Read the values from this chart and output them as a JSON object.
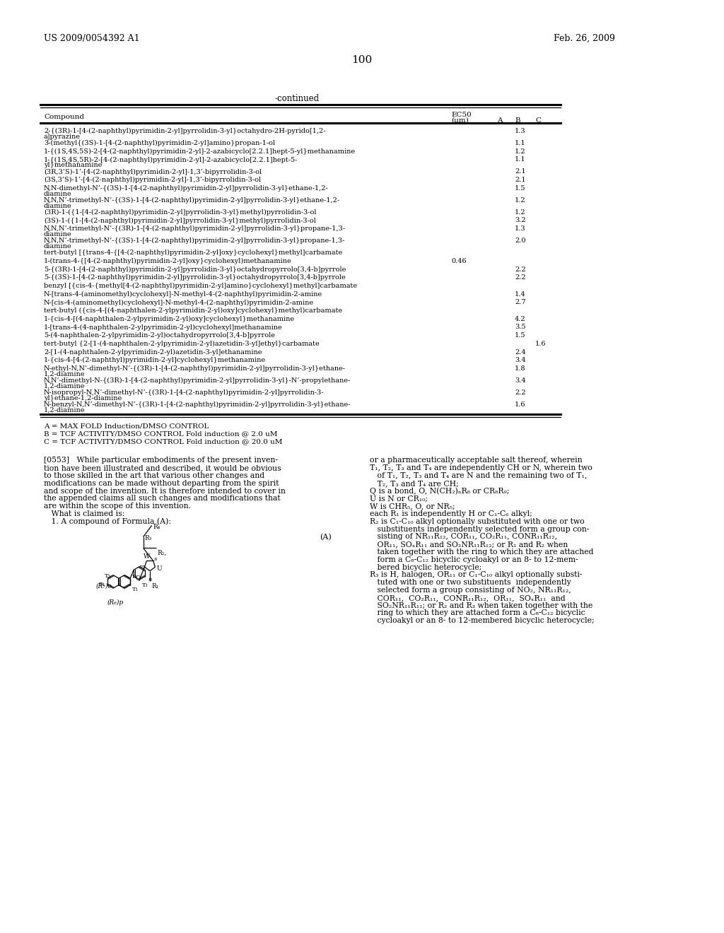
{
  "page_number": "100",
  "header_left": "US 2009/0054392 A1",
  "header_right": "Feb. 26, 2009",
  "table_title": "-continued",
  "table_rows": [
    [
      "2-{(3R)-1-[4-(2-naphthyl)pyrimidin-2-yl]pyrrolidin-3-yl}octahydro-2H-pyrido[1,2-",
      "a]pyrazine",
      "",
      "",
      "1.3",
      ""
    ],
    [
      "3-(methyl{(3S)-1-[4-(2-naphthyl)pyrimidin-2-yl]amino}propan-1-ol",
      "",
      "",
      "",
      "1.1",
      ""
    ],
    [
      "1-{(1S,4S,5S)-2-[4-(2-naphthyl)pyrimidin-2-yl]-2-azabicyclo[2.2.1]hept-5-yl}methanamine",
      "",
      "",
      "",
      "1.2",
      ""
    ],
    [
      "1-{(1S,4S,5R)-2-[4-(2-naphthyl)pyrimidin-2-yl]-2-azabicyclo[2.2.1]hept-5-",
      "yl}methanamine",
      "",
      "",
      "1.1",
      ""
    ],
    [
      "(3R,3’S)-1’-[4-(2-naphthyl)pyrimidin-2-yl]-1,3’-bipyrrolidin-3-ol",
      "",
      "",
      "",
      "2.1",
      ""
    ],
    [
      "(3S,3’S)-1’-[4-(2-naphthyl)pyrimidin-2-yl]-1,3’-bipyrrolidin-3-ol",
      "",
      "",
      "",
      "2.1",
      ""
    ],
    [
      "N,N-dimethyl-N’-{(3S)-1-[4-(2-naphthyl)pyrimidin-2-yl]pyrrolidin-3-yl}ethane-1,2-",
      "diamine",
      "",
      "",
      "1.5",
      ""
    ],
    [
      "N,N,N’-trimethyl-N’-{(3S)-1-[4-(2-naphthyl)pyrimidin-2-yl]pyrrolidin-3-yl}ethane-1,2-",
      "diamine",
      "",
      "",
      "1.2",
      ""
    ],
    [
      "(3R)-1-({1-[4-(2-naphthyl)pyrimidin-2-yl]pyrrolidin-3-yl}methyl)pyrrolidin-3-ol",
      "",
      "",
      "",
      "1.2",
      ""
    ],
    [
      "(3S)-1-({1-[4-(2-naphthyl)pyrimidin-2-yl]pyrrolidin-3-yl}methyl)pyrrolidin-3-ol",
      "",
      "",
      "",
      "3.2",
      ""
    ],
    [
      "N,N,N’-trimethyl-N’-{(3R)-1-[4-(2-naphthyl)pyrimidin-2-yl]pyrrolidin-3-yl}propane-1,3-",
      "diamine",
      "",
      "",
      "1.3",
      ""
    ],
    [
      "N,N,N’-trimethyl-N’-{(3S)-1-[4-(2-naphthyl)pyrimidin-2-yl]pyrrolidin-3-yl}propane-1,3-",
      "diamine",
      "",
      "",
      "2.0",
      ""
    ],
    [
      "tert-butyl [{trans-4-{[4-(2-naphthyl)pyrimidin-2-yl]oxy}cyclohexyl}methyl]carbamate",
      "",
      "",
      "",
      "",
      ""
    ],
    [
      "1-(trans-4-{[4-(2-naphthyl)pyrimidin-2-yl]oxy}cyclohexyl)methanamine",
      "",
      "0.46",
      "",
      "",
      ""
    ],
    [
      "5-{(3R)-1-[4-(2-naphthyl)pyrimidin-2-yl]pyrrolidin-3-yl}octahydropyrrolo[3,4-b]pyrrole",
      "",
      "",
      "",
      "2.2",
      ""
    ],
    [
      "5-{(3S)-1-[4-(2-naphthyl)pyrimidin-2-yl]pyrrolidin-3-yl}octahydropyrrolo[3,4-b]pyrrole",
      "",
      "",
      "",
      "2.2",
      ""
    ],
    [
      "benzyl [{cis-4-{methyl[4-(2-naphthyl)pyrimidin-2-yl]amino}cyclohexyl}methyl]carbamate",
      "",
      "",
      "",
      "",
      ""
    ],
    [
      "N-[trans-4-(aminomethyl)cyclohexyl]-N-methyl-4-(2-naphthyl)pyrimidin-2-amine",
      "",
      "",
      "",
      "1.4",
      ""
    ],
    [
      "N-[cis-4-(aminomethyl)cyclohexyl]-N-methyl-4-(2-naphthyl)pyrimidin-2-amine",
      "",
      "",
      "",
      "2.7",
      ""
    ],
    [
      "tert-butyl ({cis-4-[(4-naphthalen-2-ylpyrimidin-2-yl)oxy]cyclohexyl}methyl)carbamate",
      "",
      "",
      "",
      "",
      ""
    ],
    [
      "1-{cis-4-[(4-naphthalen-2-ylpyrimidin-2-yl)oxy]cyclohexyl}methanamine",
      "",
      "",
      "",
      "4.2",
      ""
    ],
    [
      "1-[trans-4-(4-naphthalen-2-ylpyrimidin-2-yl)cyclohexyl]methanamine",
      "",
      "",
      "",
      "3.5",
      ""
    ],
    [
      "5-(4-naphthalen-2-ylpyrimidin-2-yl)octahydropyrrolo[3,4-b]pyrrole",
      "",
      "",
      "",
      "1.5",
      ""
    ],
    [
      "tert-butyl {2-[1-(4-naphthalen-2-ylpyrimidin-2-yl)azetidin-3-yl]ethyl}carbamate",
      "",
      "",
      "",
      "",
      "1.6"
    ],
    [
      "2-[1-(4-naphthalen-2-ylpyrimidin-2-yl)azetidin-3-yl]ethanamine",
      "",
      "",
      "",
      "2.4",
      ""
    ],
    [
      "1-{cis-4-[4-(2-naphthyl)pyrimidin-2-yl]cyclohexyl}methanamine",
      "",
      "",
      "",
      "3.4",
      ""
    ],
    [
      "N-ethyl-N,N’-dimethyl-N’-{(3R)-1-[4-(2-naphthyl)pyrimidin-2-yl]pyrrolidin-3-yl}ethane-",
      "1,2-diamine",
      "",
      "",
      "1.8",
      ""
    ],
    [
      "N,N’-dimethyl-N-{(3R)-1-[4-(2-naphthyl)pyrimidin-2-yl]pyrrolidin-3-yl}-N’-propylethane-",
      "1,2-diamine",
      "",
      "",
      "3.4",
      ""
    ],
    [
      "N-isopropyl-N,N’-dimethyl-N’-{(3R)-1-[4-(2-naphthyl)pyrimidin-2-yl]pyrrolidin-3-",
      "yl}ethane-1,2-diamine",
      "",
      "",
      "2.2",
      ""
    ],
    [
      "N-benzyl-N,N’-dimethyl-N’-{(3R)-1-[4-(2-naphthyl)pyrimidin-2-yl]pyrrolidin-3-yl}ethane-",
      "1,2-diamine",
      "",
      "",
      "1.6",
      ""
    ]
  ],
  "footnotes": [
    "A = MAX FOLD Induction/DMSO CONTROL",
    "B = TCF ACTIVITY/DMSO CONTROL Fold induction @ 2.0 uM",
    "C = TCF ACTIVITY/DMSO CONTROL Fold induction @ 20.0 uM"
  ],
  "left_col_lines": [
    "[0553]   While particular embodiments of the present inven-",
    "tion have been illustrated and described, it would be obvious",
    "to those skilled in the art that various other changes and",
    "modifications can be made without departing from the spirit",
    "and scope of the invention. It is therefore intended to cover in",
    "the appended claims all such changes and modifications that",
    "are within the scope of this invention.",
    "   What is claimed is:",
    "   1. A compound of Formula (A):"
  ],
  "right_col_lines": [
    "or a pharmaceutically acceptable salt thereof, wherein",
    "T₁, T₂, T₃ and T₄ are independently CH or N, wherein two",
    "   of T₁, T₂, T₃ and T₄ are N and the remaining two of T₁,",
    "   T₂, T₃ and T₄ are CH;",
    "Q is a bond, O, N(CH₂)ₙR₈ or CR₈R₉;",
    "U is N or CR₁₀;",
    "W is CHR₅, O, or NR₅;",
    "each R₁ is independently H or C₁-C₆ alkyl;",
    "R₂ is C₁-C₁₀ alkyl optionally substituted with one or two",
    "   substituents independently selected form a group con-",
    "   sisting of NR₁₁R₁₂, COR₁₁, CO₂R₁₁, CONR₁₁R₁₂,",
    "   OR₁₁, SOₓR₁₁ and SO₂NR₁₁R₁₂; or R₁ and R₂ when",
    "   taken together with the ring to which they are attached",
    "   form a C₈-C₁₂ bicyclic cycloakyl or an 8- to 12-mem-",
    "   bered bicyclic heterocycle;",
    "R₃ is H, halogen, OR₁₁ or C₁-C₁₀ alkyl optionally substi-",
    "   tuted with one or two substituents  independently",
    "   selected form a group consisting of NO₂, NR₁₁R₁₂,",
    "   COR₁₁,  CO₂R₁₁,  CONR₁₁R₁₂,  OR₁₁,  SOₓR₁₁  and",
    "   SO₂NR₁₁R₁₂; or R₂ and R₃ when taken together with the",
    "   ring to which they are attached form a C₈-C₁₂ bicyclic",
    "   cycloakyl or an 8- to 12-membered bicyclic heterocycle;"
  ],
  "bg_color": "#ffffff"
}
